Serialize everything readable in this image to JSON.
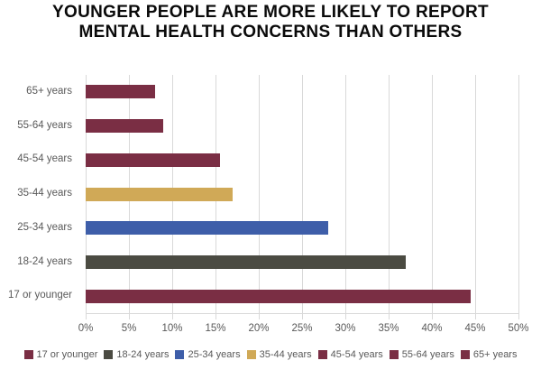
{
  "chart_data": {
    "type": "bar",
    "orientation": "horizontal",
    "title": "YOUNGER PEOPLE ARE MORE LIKELY TO REPORT MENTAL HEALTH CONCERNS THAN OTHERS",
    "title_lines": [
      "YOUNGER PEOPLE ARE MORE LIKELY TO REPORT",
      "MENTAL HEALTH CONCERNS THAN OTHERS"
    ],
    "categories": [
      "65+ years",
      "55-64 years",
      "45-54 years",
      "35-44 years",
      "25-34 years",
      "18-24 years",
      "17 or younger"
    ],
    "values_percent": [
      8,
      9,
      15.5,
      17,
      28,
      37,
      44.5
    ],
    "bar_colors": [
      "#7A2E44",
      "#7A2E44",
      "#7A2E44",
      "#D0A957",
      "#3E5EA9",
      "#4B4B42",
      "#7A2E44"
    ],
    "x_axis": {
      "min": 0,
      "max": 50,
      "step": 5,
      "tick_labels": [
        "0%",
        "5%",
        "10%",
        "15%",
        "20%",
        "25%",
        "30%",
        "35%",
        "40%",
        "45%",
        "50%"
      ]
    },
    "grid": "vertical gridlines on",
    "legend_position": "bottom",
    "legend": [
      {
        "label": "17 or younger",
        "color": "#7A2E44"
      },
      {
        "label": "18-24 years",
        "color": "#4B4B42"
      },
      {
        "label": "25-34 years",
        "color": "#3E5EA9"
      },
      {
        "label": "35-44 years",
        "color": "#D0A957"
      },
      {
        "label": "45-54 years",
        "color": "#7A2E44"
      },
      {
        "label": "55-64 years",
        "color": "#7A2E44"
      },
      {
        "label": "65+ years",
        "color": "#7A2E44"
      }
    ],
    "colors": {
      "gridline": "#D9D9D9",
      "axis_text": "#595959",
      "title_text": "#0A0A0A",
      "background": "#FFFFFF"
    }
  }
}
